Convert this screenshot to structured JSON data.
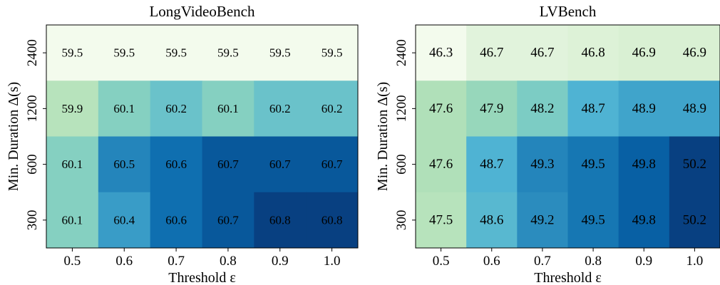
{
  "chart_data": [
    {
      "type": "heatmap",
      "title": "LongVideoBench",
      "xlabel": "Threshold ε",
      "ylabel": "Min. Duration Δ(s)",
      "x": [
        "0.5",
        "0.6",
        "0.7",
        "0.8",
        "0.9",
        "1.0"
      ],
      "y": [
        "2400",
        "1200",
        "600",
        "300"
      ],
      "values": [
        [
          59.5,
          59.5,
          59.5,
          59.5,
          59.5,
          59.5
        ],
        [
          59.9,
          60.1,
          60.2,
          60.1,
          60.2,
          60.2
        ],
        [
          60.1,
          60.5,
          60.6,
          60.7,
          60.7,
          60.7
        ],
        [
          60.1,
          60.4,
          60.6,
          60.7,
          60.8,
          60.8
        ]
      ],
      "colormap": "GnBu",
      "grid": false
    },
    {
      "type": "heatmap",
      "title": "LVBench",
      "xlabel": "Threshold ε",
      "ylabel": "Min. Duration Δ(s)",
      "x": [
        "0.5",
        "0.6",
        "0.7",
        "0.8",
        "0.9",
        "1.0"
      ],
      "y": [
        "2400",
        "1200",
        "600",
        "300"
      ],
      "values": [
        [
          46.3,
          46.7,
          46.7,
          46.8,
          46.9,
          46.9
        ],
        [
          47.6,
          47.9,
          48.2,
          48.7,
          48.9,
          48.9
        ],
        [
          47.6,
          48.7,
          49.3,
          49.5,
          49.8,
          50.2
        ],
        [
          47.5,
          48.6,
          49.2,
          49.5,
          49.8,
          50.2
        ]
      ],
      "colormap": "GnBu",
      "grid": false
    }
  ]
}
